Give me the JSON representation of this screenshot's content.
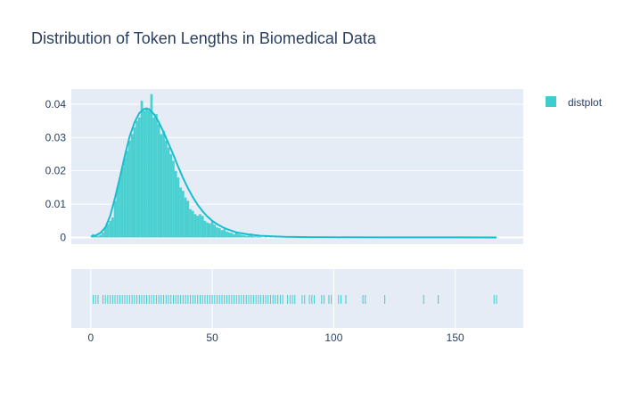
{
  "chart_data": {
    "type": "histogram",
    "title": "Distribution of Token Lengths in Biomedical Data",
    "xlabel": "",
    "ylabel": "",
    "xlim": [
      -8,
      178
    ],
    "ylim": [
      -0.002,
      0.0445
    ],
    "x_ticks": [
      0,
      50,
      100,
      150
    ],
    "y_ticks": [
      0,
      0.01,
      0.02,
      0.03,
      0.04
    ],
    "y_tick_labels": [
      "0",
      "0.01",
      "0.02",
      "0.03",
      "0.04"
    ],
    "x_tick_labels": [
      "0",
      "50",
      "100",
      "150"
    ],
    "grid": true,
    "legend_position": "top-right",
    "series": [
      {
        "name": "distplot",
        "color": "#3dcdcd",
        "histogram": {
          "bin_width": 1,
          "bins": [
            {
              "x": 1,
              "y": 0.001
            },
            {
              "x": 2,
              "y": 0.0005
            },
            {
              "x": 3,
              "y": 0.0005
            },
            {
              "x": 4,
              "y": 0.0008
            },
            {
              "x": 5,
              "y": 0.0015
            },
            {
              "x": 6,
              "y": 0.003
            },
            {
              "x": 7,
              "y": 0.004
            },
            {
              "x": 8,
              "y": 0.005
            },
            {
              "x": 9,
              "y": 0.006
            },
            {
              "x": 10,
              "y": 0.011
            },
            {
              "x": 11,
              "y": 0.015
            },
            {
              "x": 12,
              "y": 0.018
            },
            {
              "x": 13,
              "y": 0.021
            },
            {
              "x": 14,
              "y": 0.024
            },
            {
              "x": 15,
              "y": 0.026
            },
            {
              "x": 16,
              "y": 0.029
            },
            {
              "x": 17,
              "y": 0.031
            },
            {
              "x": 18,
              "y": 0.033
            },
            {
              "x": 19,
              "y": 0.035
            },
            {
              "x": 20,
              "y": 0.036
            },
            {
              "x": 21,
              "y": 0.041
            },
            {
              "x": 22,
              "y": 0.038
            },
            {
              "x": 23,
              "y": 0.039
            },
            {
              "x": 24,
              "y": 0.038
            },
            {
              "x": 25,
              "y": 0.043
            },
            {
              "x": 26,
              "y": 0.036
            },
            {
              "x": 27,
              "y": 0.037
            },
            {
              "x": 28,
              "y": 0.034
            },
            {
              "x": 29,
              "y": 0.031
            },
            {
              "x": 30,
              "y": 0.032
            },
            {
              "x": 31,
              "y": 0.029
            },
            {
              "x": 32,
              "y": 0.027
            },
            {
              "x": 33,
              "y": 0.025
            },
            {
              "x": 34,
              "y": 0.023
            },
            {
              "x": 35,
              "y": 0.02
            },
            {
              "x": 36,
              "y": 0.018
            },
            {
              "x": 37,
              "y": 0.015
            },
            {
              "x": 38,
              "y": 0.014
            },
            {
              "x": 39,
              "y": 0.012
            },
            {
              "x": 40,
              "y": 0.011
            },
            {
              "x": 41,
              "y": 0.0085
            },
            {
              "x": 42,
              "y": 0.008
            },
            {
              "x": 43,
              "y": 0.007
            },
            {
              "x": 44,
              "y": 0.0065
            },
            {
              "x": 45,
              "y": 0.007
            },
            {
              "x": 46,
              "y": 0.0065
            },
            {
              "x": 47,
              "y": 0.005
            },
            {
              "x": 48,
              "y": 0.0045
            },
            {
              "x": 49,
              "y": 0.0042
            },
            {
              "x": 50,
              "y": 0.0048
            },
            {
              "x": 51,
              "y": 0.0038
            },
            {
              "x": 52,
              "y": 0.003
            },
            {
              "x": 53,
              "y": 0.0028
            },
            {
              "x": 54,
              "y": 0.0022
            },
            {
              "x": 55,
              "y": 0.0025
            },
            {
              "x": 56,
              "y": 0.0018
            },
            {
              "x": 57,
              "y": 0.0015
            },
            {
              "x": 58,
              "y": 0.0014
            },
            {
              "x": 59,
              "y": 0.001
            },
            {
              "x": 60,
              "y": 0.0015
            },
            {
              "x": 61,
              "y": 0.001
            },
            {
              "x": 62,
              "y": 0.0008
            },
            {
              "x": 63,
              "y": 0.0007
            },
            {
              "x": 64,
              "y": 0.0005
            },
            {
              "x": 65,
              "y": 0.0006
            },
            {
              "x": 66,
              "y": 0.0012
            },
            {
              "x": 67,
              "y": 0.0004
            },
            {
              "x": 68,
              "y": 0.0003
            },
            {
              "x": 69,
              "y": 0.0003
            },
            {
              "x": 70,
              "y": 0.0002
            },
            {
              "x": 72,
              "y": 0.0002
            },
            {
              "x": 74,
              "y": 0.0001
            },
            {
              "x": 76,
              "y": 0.0002
            },
            {
              "x": 78,
              "y": 0.0001
            },
            {
              "x": 80,
              "y": 0.0001
            },
            {
              "x": 83,
              "y": 0.0001
            }
          ]
        },
        "kde": {
          "x": [
            0,
            2,
            4,
            6,
            8,
            10,
            12,
            14,
            16,
            18,
            20,
            22,
            24,
            26,
            28,
            30,
            32,
            34,
            36,
            38,
            40,
            42,
            44,
            46,
            48,
            50,
            52,
            55,
            60,
            65,
            70,
            75,
            80,
            90,
            100,
            120,
            140,
            167
          ],
          "y": [
            0.0003,
            0.0006,
            0.0014,
            0.003,
            0.0065,
            0.012,
            0.018,
            0.0245,
            0.0303,
            0.0345,
            0.0373,
            0.0386,
            0.0385,
            0.037,
            0.0346,
            0.0315,
            0.0282,
            0.0248,
            0.0212,
            0.0178,
            0.0148,
            0.0121,
            0.0098,
            0.0079,
            0.0063,
            0.005,
            0.004,
            0.0028,
            0.0015,
            0.0009,
            0.0005,
            0.00035,
            0.0002,
            0.0001,
            6e-05,
            3e-05,
            2e-05,
            1e-05
          ]
        },
        "rug": [
          1,
          2,
          3,
          5,
          6,
          7,
          8,
          9,
          10,
          11,
          12,
          13,
          14,
          15,
          16,
          17,
          18,
          19,
          20,
          21,
          22,
          23,
          24,
          25,
          26,
          27,
          28,
          29,
          30,
          31,
          32,
          33,
          34,
          35,
          36,
          37,
          38,
          39,
          40,
          41,
          42,
          43,
          44,
          45,
          46,
          47,
          48,
          49,
          50,
          51,
          52,
          53,
          54,
          55,
          56,
          57,
          58,
          59,
          60,
          61,
          62,
          63,
          64,
          65,
          66,
          67,
          68,
          69,
          70,
          71,
          72,
          73,
          74,
          75,
          76,
          77,
          78,
          79,
          81,
          82,
          83,
          84,
          87,
          88,
          90,
          91,
          92,
          95,
          96,
          98,
          99,
          102,
          103,
          105,
          112,
          113,
          121,
          137,
          143,
          166,
          167
        ]
      }
    ]
  }
}
